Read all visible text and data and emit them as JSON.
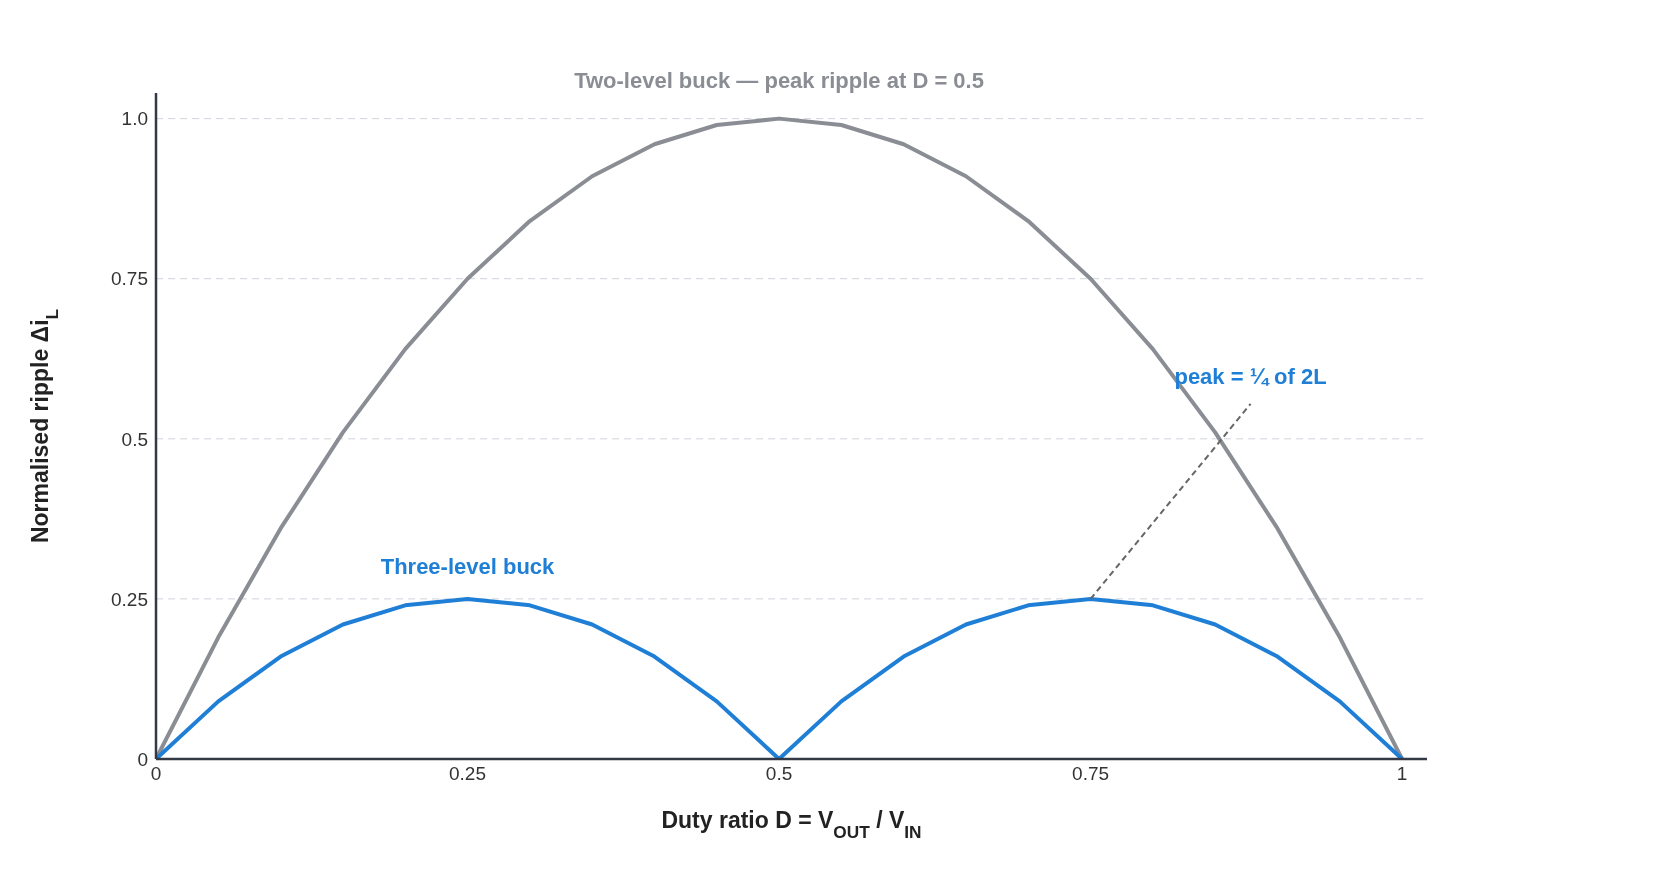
{
  "chart_data": {
    "type": "line",
    "xlabel": "Duty ratio D = V$_{OUT}$ / V$_{IN}$",
    "ylabel": "Normalised ripple Δi$_{L}$",
    "x": [
      0,
      0.05,
      0.1,
      0.15,
      0.2,
      0.25,
      0.3,
      0.35,
      0.4,
      0.45,
      0.5,
      0.55,
      0.6,
      0.65,
      0.7,
      0.75,
      0.8,
      0.85,
      0.9,
      0.95,
      1
    ],
    "series": [
      {
        "name": "Two-level buck — peak ripple at D = 0.5",
        "color": "#8a8d93",
        "values": [
          0,
          0.19,
          0.36,
          0.51,
          0.64,
          0.75,
          0.84,
          0.91,
          0.96,
          0.99,
          1.0,
          0.99,
          0.96,
          0.91,
          0.84,
          0.75,
          0.64,
          0.51,
          0.36,
          0.19,
          0
        ]
      },
      {
        "name": "Three-level buck",
        "color": "#1f7fd6",
        "values": [
          0,
          0.09,
          0.16,
          0.21,
          0.24,
          0.25,
          0.24,
          0.21,
          0.16,
          0.09,
          0,
          0.09,
          0.16,
          0.21,
          0.24,
          0.25,
          0.24,
          0.21,
          0.16,
          0.09,
          0
        ]
      }
    ],
    "xlim": [
      0,
      1.02
    ],
    "ylim": [
      0,
      1.04
    ],
    "xticks": [
      0,
      0.25,
      0.5,
      0.75,
      1
    ],
    "yticks": [
      0,
      0.25,
      0.5,
      0.75,
      {
        "value": 1,
        "label": "1.0"
      }
    ],
    "annotations": [
      {
        "text": "peak = ¼ of 2L",
        "x": 0.75,
        "y": 0.25
      }
    ],
    "grid": "y",
    "marker": "none",
    "line_style": "solid"
  }
}
